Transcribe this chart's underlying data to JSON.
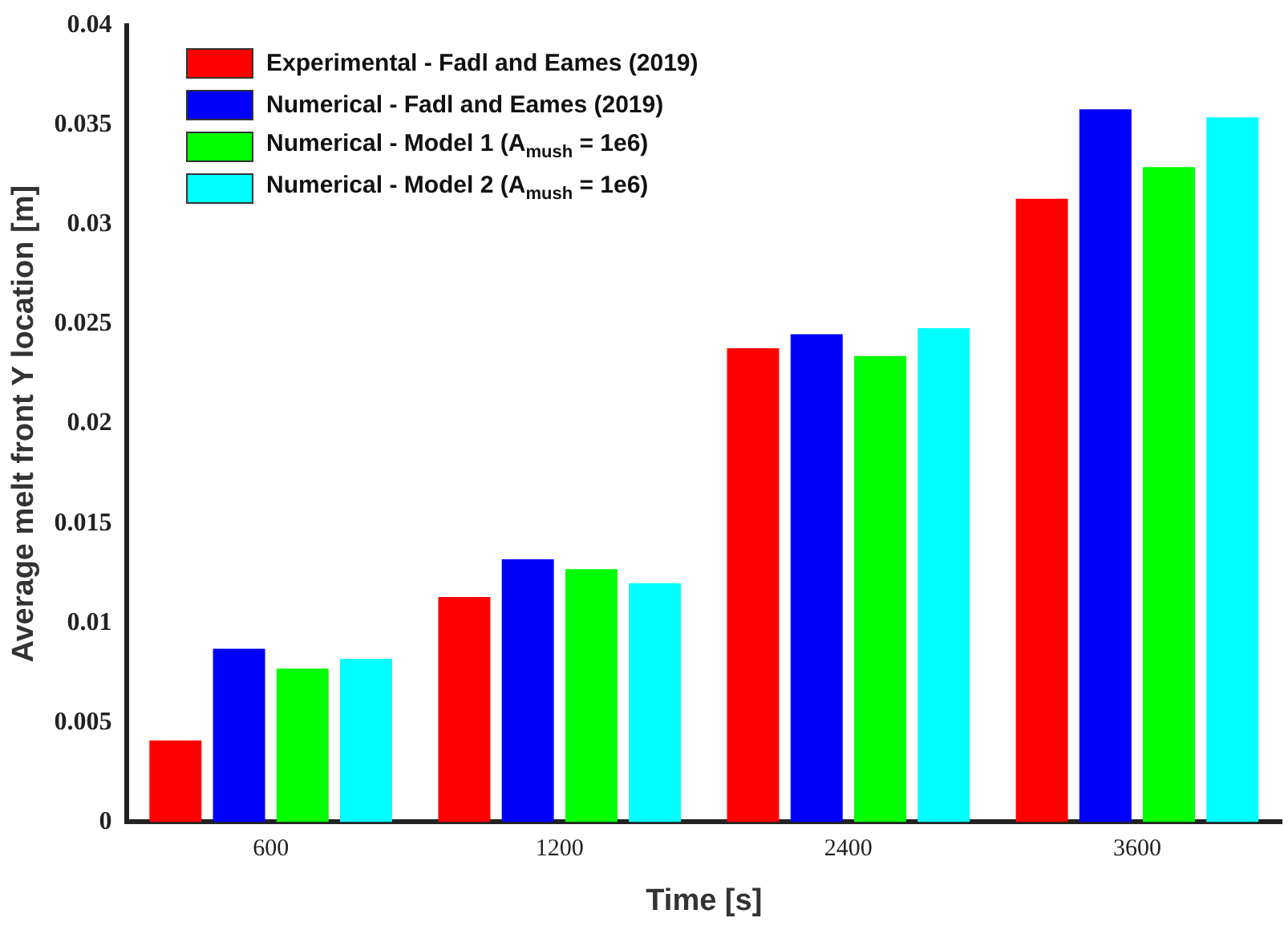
{
  "chart_data": {
    "type": "bar",
    "xlabel": "Time [s]",
    "ylabel": "Average melt front Y location [m]",
    "categories": [
      "600",
      "1200",
      "2400",
      "3600"
    ],
    "series": [
      {
        "name": "Experimental - Fadl and Eames (2019)",
        "color": "#ff0000",
        "values": [
          0.0041,
          0.0113,
          0.0238,
          0.0313
        ]
      },
      {
        "name": "Numerical - Fadl and Eames (2019)",
        "color": "#0000ff",
        "values": [
          0.0087,
          0.0132,
          0.0245,
          0.0358
        ]
      },
      {
        "name": "Numerical - Model 1 (A$_{mush}$ = 1e6)",
        "color": "#00ff00",
        "values": [
          0.0077,
          0.0127,
          0.0234,
          0.0329
        ]
      },
      {
        "name": "Numerical - Model 2 (A$_{mush}$ = 1e6)",
        "color": "#00ffff",
        "values": [
          0.0082,
          0.012,
          0.0248,
          0.0354
        ]
      }
    ],
    "ylim": [
      0,
      0.04
    ],
    "yticks": [
      0,
      0.005,
      0.01,
      0.015,
      0.02,
      0.025,
      0.03,
      0.035,
      0.04
    ],
    "grid": false,
    "legend": "top left"
  }
}
